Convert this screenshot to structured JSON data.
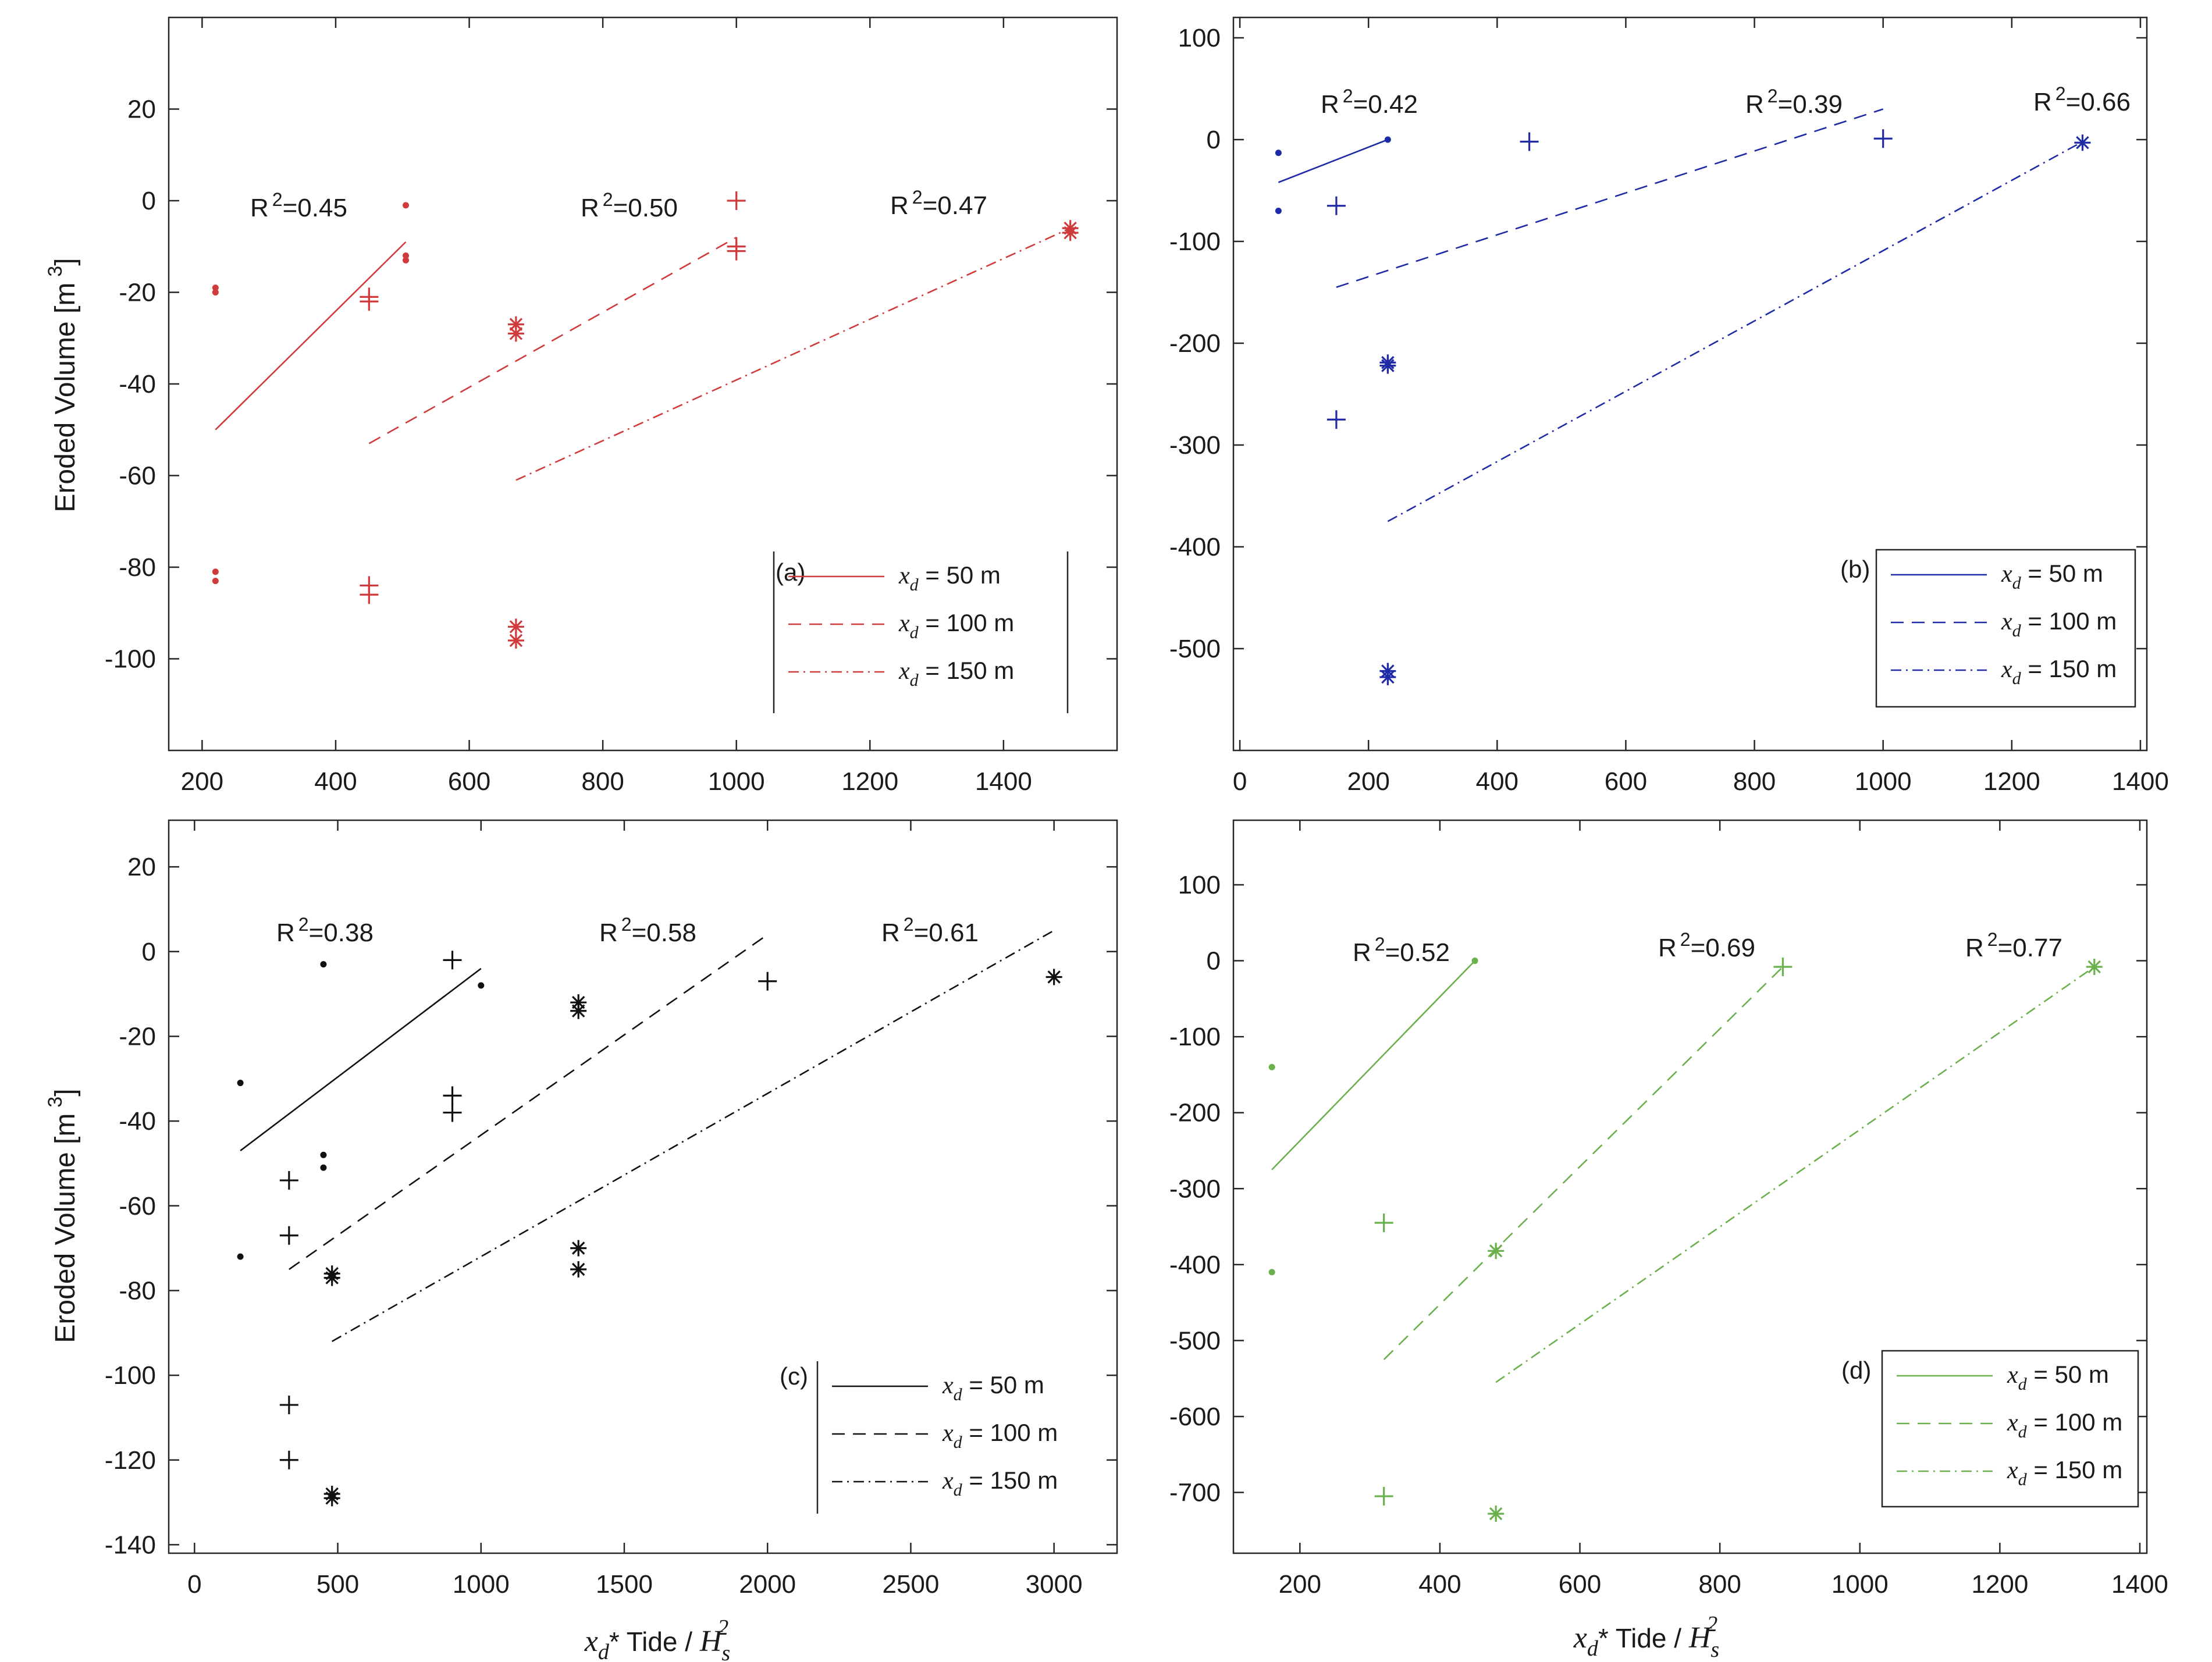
{
  "chart_data": [
    {
      "panel": "(a)",
      "type": "scatter",
      "color": "#d03a3a",
      "xlim": [
        150,
        1570
      ],
      "ylim": [
        -120,
        40
      ],
      "xticks": [
        200,
        400,
        600,
        800,
        1000,
        1200,
        1400
      ],
      "yticks": [
        20,
        0,
        -20,
        -40,
        -60,
        -80,
        -100
      ],
      "ylabel": "Eroded Volume [m 3]",
      "xlabel": "",
      "legend_position": "bottom-right",
      "legend": [
        {
          "label": "x_d = 50 m",
          "var": "x",
          "sub": "d",
          "rest": " = 50 m",
          "dash": "solid"
        },
        {
          "label": "x_d = 100 m",
          "var": "x",
          "sub": "d",
          "rest": " = 100 m",
          "dash": "dashed"
        },
        {
          "label": "x_d = 150 m",
          "var": "x",
          "sub": "d",
          "rest": " = 150 m",
          "dash": "dashdot"
        }
      ],
      "series": [
        {
          "name": "x_d = 50 m",
          "marker": "dot",
          "points": [
            [
              220,
              -19
            ],
            [
              220,
              -20
            ],
            [
              220,
              -81
            ],
            [
              220,
              -83
            ],
            [
              505,
              -1
            ],
            [
              505,
              -12
            ],
            [
              505,
              -13
            ]
          ],
          "fit": [
            [
              220,
              -50
            ],
            [
              505,
              -9
            ]
          ],
          "r2_label": "R",
          "r2_sup": "2",
          "r2_value": "=0.45"
        },
        {
          "name": "x_d = 100 m",
          "marker": "plus",
          "points": [
            [
              450,
              -21
            ],
            [
              450,
              -22
            ],
            [
              450,
              -84
            ],
            [
              450,
              -86
            ],
            [
              1000,
              0
            ],
            [
              1000,
              -10
            ],
            [
              1000,
              -11
            ]
          ],
          "fit": [
            [
              450,
              -53
            ],
            [
              1000,
              -8
            ]
          ],
          "r2_label": "R",
          "r2_sup": "2",
          "r2_value": "=0.50"
        },
        {
          "name": "x_d = 150 m",
          "marker": "star",
          "points": [
            [
              670,
              -27
            ],
            [
              670,
              -29
            ],
            [
              670,
              -93
            ],
            [
              670,
              -96
            ],
            [
              1500,
              -6
            ],
            [
              1500,
              -7
            ]
          ],
          "fit": [
            [
              670,
              -61
            ],
            [
              1500,
              -6
            ]
          ],
          "r2_label": "R",
          "r2_sup": "2",
          "r2_value": "=0.47"
        }
      ]
    },
    {
      "panel": "(b)",
      "type": "scatter",
      "color": "#1f2aa6",
      "xlim": [
        -10,
        1410
      ],
      "ylim": [
        -600,
        120
      ],
      "xticks": [
        0,
        200,
        400,
        600,
        800,
        1000,
        1200,
        1400
      ],
      "yticks": [
        100,
        0,
        -100,
        -200,
        -300,
        -400,
        -500
      ],
      "ylabel": "",
      "xlabel": "",
      "legend_position": "bottom-right",
      "legend": [
        {
          "label": "x_d = 50 m",
          "var": "x",
          "sub": "d",
          "rest": " = 50 m",
          "dash": "solid"
        },
        {
          "label": "x_d = 100 m",
          "var": "x",
          "sub": "d",
          "rest": " = 100 m",
          "dash": "dashed"
        },
        {
          "label": "x_d = 150 m",
          "var": "x",
          "sub": "d",
          "rest": " = 150 m",
          "dash": "dashdot"
        }
      ],
      "series": [
        {
          "name": "x_d = 50 m",
          "marker": "dot",
          "points": [
            [
              60,
              -13
            ],
            [
              60,
              -70
            ],
            [
              230,
              0
            ]
          ],
          "fit": [
            [
              60,
              -42
            ],
            [
              230,
              0
            ]
          ],
          "r2_label": "R",
          "r2_sup": "2",
          "r2_value": "=0.42"
        },
        {
          "name": "x_d = 100 m",
          "marker": "plus",
          "points": [
            [
              150,
              -65
            ],
            [
              150,
              -275
            ],
            [
              450,
              -2
            ],
            [
              1000,
              1
            ]
          ],
          "fit": [
            [
              150,
              -145
            ],
            [
              1000,
              30
            ]
          ],
          "r2_label": "R",
          "r2_sup": "2",
          "r2_value": "=0.39"
        },
        {
          "name": "x_d = 150 m",
          "marker": "star",
          "points": [
            [
              230,
              -219
            ],
            [
              230,
              -222
            ],
            [
              230,
              -522
            ],
            [
              230,
              -528
            ],
            [
              1310,
              -3
            ]
          ],
          "fit": [
            [
              230,
              -375
            ],
            [
              1310,
              -2
            ]
          ],
          "r2_label": "R",
          "r2_sup": "2",
          "r2_value": "=0.66"
        }
      ]
    },
    {
      "panel": "(c)",
      "type": "scatter",
      "color": "#111111",
      "xlim": [
        -90,
        3220
      ],
      "ylim": [
        -142,
        31
      ],
      "xticks": [
        0,
        500,
        1000,
        1500,
        2000,
        2500,
        3000
      ],
      "yticks": [
        20,
        0,
        -20,
        -40,
        -60,
        -80,
        -100,
        -120,
        -140
      ],
      "ylabel": "Eroded Volume [m 3]",
      "xlabel": "x_d* Tide / H_s^2",
      "legend_position": "bottom-right",
      "legend": [
        {
          "label": "x_d = 50 m",
          "var": "x",
          "sub": "d",
          "rest": " = 50 m",
          "dash": "solid"
        },
        {
          "label": "x_d = 100 m",
          "var": "x",
          "sub": "d",
          "rest": " = 100 m",
          "dash": "dashed"
        },
        {
          "label": "x_d = 150 m",
          "var": "x",
          "sub": "d",
          "rest": " = 150 m",
          "dash": "dashdot"
        }
      ],
      "series": [
        {
          "name": "x_d = 50 m",
          "marker": "dot",
          "points": [
            [
              160,
              -31
            ],
            [
              160,
              -72
            ],
            [
              450,
              -3
            ],
            [
              450,
              -48
            ],
            [
              450,
              -51
            ],
            [
              1000,
              -8
            ]
          ],
          "fit": [
            [
              160,
              -47
            ],
            [
              1000,
              -4
            ]
          ],
          "r2_label": "R",
          "r2_sup": "2",
          "r2_value": "=0.38"
        },
        {
          "name": "x_d = 100 m",
          "marker": "plus",
          "points": [
            [
              330,
              -54
            ],
            [
              330,
              -67
            ],
            [
              330,
              -107
            ],
            [
              330,
              -120
            ],
            [
              900,
              -2
            ],
            [
              900,
              -34
            ],
            [
              900,
              -38
            ],
            [
              2000,
              -7
            ]
          ],
          "fit": [
            [
              330,
              -75
            ],
            [
              2000,
              4
            ]
          ],
          "r2_label": "R",
          "r2_sup": "2",
          "r2_value": "=0.58"
        },
        {
          "name": "x_d = 150 m",
          "marker": "star",
          "points": [
            [
              480,
              -76
            ],
            [
              480,
              -77
            ],
            [
              480,
              -128
            ],
            [
              480,
              -129
            ],
            [
              1340,
              -12
            ],
            [
              1340,
              -14
            ],
            [
              1340,
              -70
            ],
            [
              1340,
              -75
            ],
            [
              3000,
              -6
            ]
          ],
          "fit": [
            [
              480,
              -92
            ],
            [
              3000,
              5
            ]
          ],
          "r2_label": "R",
          "r2_sup": "2",
          "r2_value": "=0.61"
        }
      ]
    },
    {
      "panel": "(d)",
      "type": "scatter",
      "color": "#6ab04c",
      "xlim": [
        105,
        1410
      ],
      "ylim": [
        -780,
        185
      ],
      "xticks": [
        200,
        400,
        600,
        800,
        1000,
        1200,
        1400
      ],
      "yticks": [
        100,
        0,
        -100,
        -200,
        -300,
        -400,
        -500,
        -600,
        -700
      ],
      "ylabel": "",
      "xlabel": "x_d* Tide / H_s^2",
      "legend_position": "bottom-right",
      "legend": [
        {
          "label": "x_d = 50 m",
          "var": "x",
          "sub": "d",
          "rest": " = 50 m",
          "dash": "solid"
        },
        {
          "label": "x_d = 100 m",
          "var": "x",
          "sub": "d",
          "rest": " = 100 m",
          "dash": "dashed"
        },
        {
          "label": "x_d = 150 m",
          "var": "x",
          "sub": "d",
          "rest": " = 150 m",
          "dash": "dashdot"
        }
      ],
      "series": [
        {
          "name": "x_d = 50 m",
          "marker": "dot",
          "points": [
            [
              160,
              -140
            ],
            [
              160,
              -410
            ],
            [
              450,
              0
            ]
          ],
          "fit": [
            [
              160,
              -275
            ],
            [
              450,
              0
            ]
          ],
          "r2_label": "R",
          "r2_sup": "2",
          "r2_value": "=0.52"
        },
        {
          "name": "x_d = 100 m",
          "marker": "plus",
          "points": [
            [
              320,
              -345
            ],
            [
              320,
              -705
            ],
            [
              890,
              -8
            ]
          ],
          "fit": [
            [
              320,
              -525
            ],
            [
              890,
              -8
            ]
          ],
          "r2_label": "R",
          "r2_sup": "2",
          "r2_value": "=0.69"
        },
        {
          "name": "x_d = 150 m",
          "marker": "star",
          "points": [
            [
              480,
              -382
            ],
            [
              480,
              -728
            ],
            [
              1335,
              -8
            ]
          ],
          "fit": [
            [
              480,
              -555
            ],
            [
              1335,
              -8
            ]
          ],
          "r2_label": "R",
          "r2_sup": "2",
          "r2_value": "=0.77"
        }
      ]
    }
  ],
  "xaxis_title": {
    "var": "x",
    "sub": "d",
    "mid": "* Tide / ",
    "var2": "H",
    "sub2": "s",
    "sup2": "2"
  },
  "yaxis_title": {
    "main": "Eroded Volume [m",
    "sup": "3",
    "close": "]"
  }
}
